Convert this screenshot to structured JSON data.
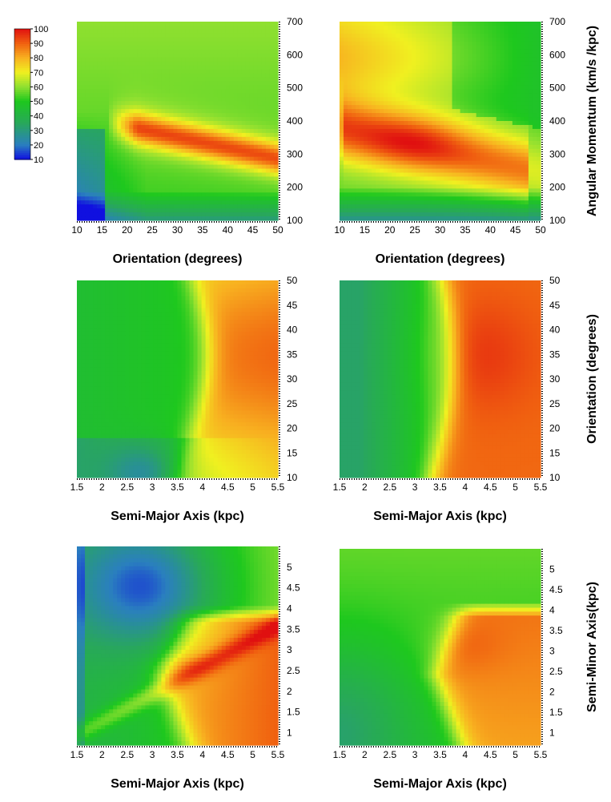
{
  "figure": {
    "description_visible": false
  },
  "colorbar": {
    "ticks": [
      "100",
      "90",
      "80",
      "70",
      "60",
      "50",
      "40",
      "30",
      "20",
      "10"
    ],
    "stops": [
      {
        "value": 10,
        "color": "#1010e0"
      },
      {
        "value": 20,
        "color": "#2a7fbf"
      },
      {
        "value": 35,
        "color": "#28a85a"
      },
      {
        "value": 50,
        "color": "#1ec81e"
      },
      {
        "value": 60,
        "color": "#90e030"
      },
      {
        "value": 70,
        "color": "#f0f020"
      },
      {
        "value": 80,
        "color": "#f8b020"
      },
      {
        "value": 90,
        "color": "#f06010"
      },
      {
        "value": 100,
        "color": "#e01010"
      }
    ]
  },
  "chart_data": [
    {
      "type": "heatmap",
      "panel": "top-left",
      "xlabel": "Orientation (degrees)",
      "ylabel": "",
      "x_ticks": [
        "10",
        "15",
        "20",
        "25",
        "30",
        "35",
        "40",
        "45",
        "50"
      ],
      "y_ticks": [
        "100",
        "200",
        "300",
        "400",
        "500",
        "600",
        "700"
      ],
      "xlim": [
        10,
        50
      ],
      "ylim": [
        100,
        700
      ],
      "peak": {
        "x": 40,
        "y": 300,
        "value": 85
      },
      "description": "Orange band peaking between 20 and 50 deg near 300-380 km/s/kpc; blue at low orientation and low momentum"
    },
    {
      "type": "heatmap",
      "panel": "top-right",
      "xlabel": "Orientation (degrees)",
      "ylabel": "Angular Momentum (km/s /kpc)",
      "x_ticks": [
        "10",
        "15",
        "20",
        "25",
        "30",
        "35",
        "40",
        "45",
        "50"
      ],
      "y_ticks": [
        "100",
        "200",
        "300",
        "400",
        "500",
        "600",
        "700"
      ],
      "xlim": [
        10,
        50
      ],
      "ylim": [
        100,
        700
      ],
      "peak": {
        "x": 27,
        "y": 360,
        "value": 90
      }
    },
    {
      "type": "heatmap",
      "panel": "middle-left",
      "xlabel": "Semi-Major Axis (kpc)",
      "ylabel": "",
      "x_ticks": [
        "1.5",
        "2",
        "2.5",
        "3",
        "3.5",
        "4",
        "4.5",
        "5",
        "5.5"
      ],
      "y_ticks": [
        "10",
        "15",
        "20",
        "25",
        "30",
        "35",
        "40",
        "45",
        "50"
      ],
      "xlim": [
        1.5,
        5.5
      ],
      "ylim": [
        10,
        50
      ],
      "peak": {
        "x": 4.4,
        "y": 36,
        "value": 85
      }
    },
    {
      "type": "heatmap",
      "panel": "middle-right",
      "xlabel": "Semi-Major Axis (kpc)",
      "ylabel": "Orientation (degrees)",
      "x_ticks": [
        "1.5",
        "2",
        "2.5",
        "3",
        "3.5",
        "4",
        "4.5",
        "5",
        "5.5"
      ],
      "y_ticks": [
        "10",
        "15",
        "20",
        "25",
        "30",
        "35",
        "40",
        "45",
        "50"
      ],
      "xlim": [
        1.5,
        5.5
      ],
      "ylim": [
        10,
        50
      ],
      "peak": {
        "x": 4.2,
        "y": 34,
        "value": 88
      }
    },
    {
      "type": "heatmap",
      "panel": "bottom-left",
      "xlabel": "Semi-Major Axis (kpc)",
      "ylabel": "",
      "x_ticks": [
        "1.5",
        "2",
        "2.5",
        "3",
        "3.5",
        "4",
        "4.5",
        "5",
        "5.5"
      ],
      "y_ticks": [
        "1",
        "1.5",
        "2",
        "2.5",
        "3",
        "3.5",
        "4",
        "4.5",
        "5"
      ],
      "xlim": [
        1.5,
        5.5
      ],
      "ylim": [
        0.7,
        5.5
      ],
      "peak": {
        "x": 4.0,
        "y": 2.3,
        "value": 88
      }
    },
    {
      "type": "heatmap",
      "panel": "bottom-right",
      "xlabel": "Semi-Major Axis (kpc)",
      "ylabel": "Semi-Minor Axis(kpc)",
      "x_ticks": [
        "1.5",
        "2",
        "2.5",
        "3",
        "3.5",
        "4",
        "4.5",
        "5",
        "5.5"
      ],
      "y_ticks": [
        "1",
        "1.5",
        "2",
        "2.5",
        "3",
        "3.5",
        "4",
        "4.5",
        "5"
      ],
      "xlim": [
        1.5,
        5.5
      ],
      "ylim": [
        0.7,
        5.5
      ],
      "peak": {
        "x": 4.6,
        "y": 2.3,
        "value": 88
      }
    }
  ]
}
